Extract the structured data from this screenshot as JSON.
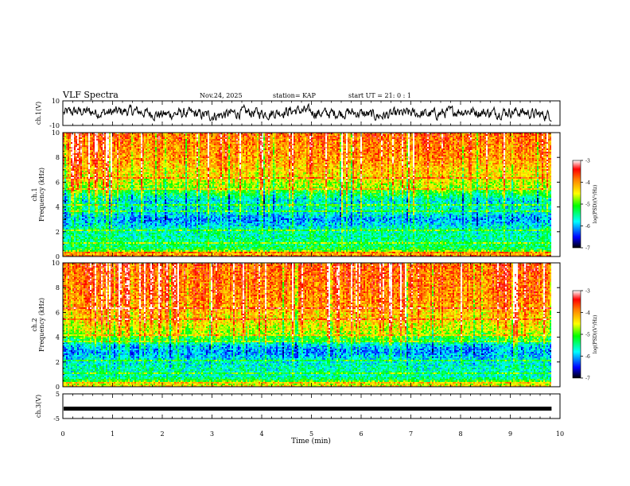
{
  "header": {
    "title": "VLF Spectra",
    "date": "Nov.24, 2025",
    "station": "station= KAP",
    "start": "start  UT =   21: 0  : 1"
  },
  "chart_data": [
    {
      "type": "line",
      "name": "ch1-voltage",
      "ylabel": "ch.1(V)",
      "ylim": [
        -10,
        10
      ],
      "tick_labels": [
        "10",
        "-10"
      ],
      "xlim": [
        0,
        10
      ],
      "data_extent_min": 9.83,
      "description_series": "dense noisy waveform around 0 V, amplitude about ±5 V"
    },
    {
      "type": "heatmap",
      "name": "ch1-spectrogram",
      "ylabel": "ch.1\nFrequency (kHz)",
      "ylabel_lines": [
        "ch.1",
        "Frequency (kHz)"
      ],
      "ylim": [
        0,
        10
      ],
      "y_ticks": [
        "0",
        "2",
        "4",
        "6",
        "8",
        "10"
      ],
      "xlim": [
        0,
        10
      ],
      "colorbar": {
        "label": "log(PSD)(V²/Hz)",
        "range": [
          -7,
          -3
        ],
        "ticks": [
          "-3",
          "-4",
          "-5",
          "-6",
          "-7"
        ]
      },
      "band_profile": [
        {
          "f": 0.2,
          "level": -4.2
        },
        {
          "f": 0.6,
          "level": -5.2
        },
        {
          "f": 1.0,
          "level": -5.4
        },
        {
          "f": 1.5,
          "level": -5.5
        },
        {
          "f": 2.2,
          "level": -5.6
        },
        {
          "f": 2.6,
          "level": -5.9
        },
        {
          "f": 3.0,
          "level": -6.1
        },
        {
          "f": 3.4,
          "level": -5.8
        },
        {
          "f": 4.0,
          "level": -5.6
        },
        {
          "f": 4.5,
          "level": -5.8
        },
        {
          "f": 5.0,
          "level": -5.3
        },
        {
          "f": 5.6,
          "level": -4.8
        },
        {
          "f": 6.5,
          "level": -4.4
        },
        {
          "f": 8.0,
          "level": -4.0
        },
        {
          "f": 10.0,
          "level": -3.8
        }
      ]
    },
    {
      "type": "heatmap",
      "name": "ch2-spectrogram",
      "ylabel": "ch.2\nFrequency (kHz)",
      "ylabel_lines": [
        "ch.2",
        "Frequency (kHz)"
      ],
      "ylim": [
        0,
        10
      ],
      "y_ticks": [
        "0",
        "2",
        "4",
        "6",
        "8",
        "10"
      ],
      "xlim": [
        0,
        10
      ],
      "colorbar": {
        "label": "log(PSD)(V²/Hz)",
        "range": [
          -7,
          -3
        ],
        "ticks": [
          "-3",
          "-4",
          "-5",
          "-6",
          "-7"
        ]
      },
      "band_profile": [
        {
          "f": 0.2,
          "level": -4.6
        },
        {
          "f": 0.8,
          "level": -5.6
        },
        {
          "f": 1.5,
          "level": -5.6
        },
        {
          "f": 2.2,
          "level": -5.8
        },
        {
          "f": 2.8,
          "level": -6.1
        },
        {
          "f": 3.3,
          "level": -5.9
        },
        {
          "f": 3.8,
          "level": -5.2
        },
        {
          "f": 4.5,
          "level": -4.6
        },
        {
          "f": 5.5,
          "level": -4.3
        },
        {
          "f": 7.0,
          "level": -3.9
        },
        {
          "f": 10.0,
          "level": -3.7
        }
      ]
    },
    {
      "type": "line",
      "name": "ch3-voltage",
      "ylabel": "ch.3(V)",
      "ylim": [
        -5,
        5
      ],
      "tick_labels": [
        "5",
        "-5"
      ],
      "xlim": [
        0,
        10
      ],
      "constant_value": -1,
      "data_extent_min": 9.83
    }
  ],
  "x_axis": {
    "label": "Time (min)",
    "ticks": [
      "0",
      "1",
      "2",
      "3",
      "4",
      "5",
      "6",
      "7",
      "8",
      "9",
      "10"
    ],
    "range": [
      0,
      10
    ]
  }
}
